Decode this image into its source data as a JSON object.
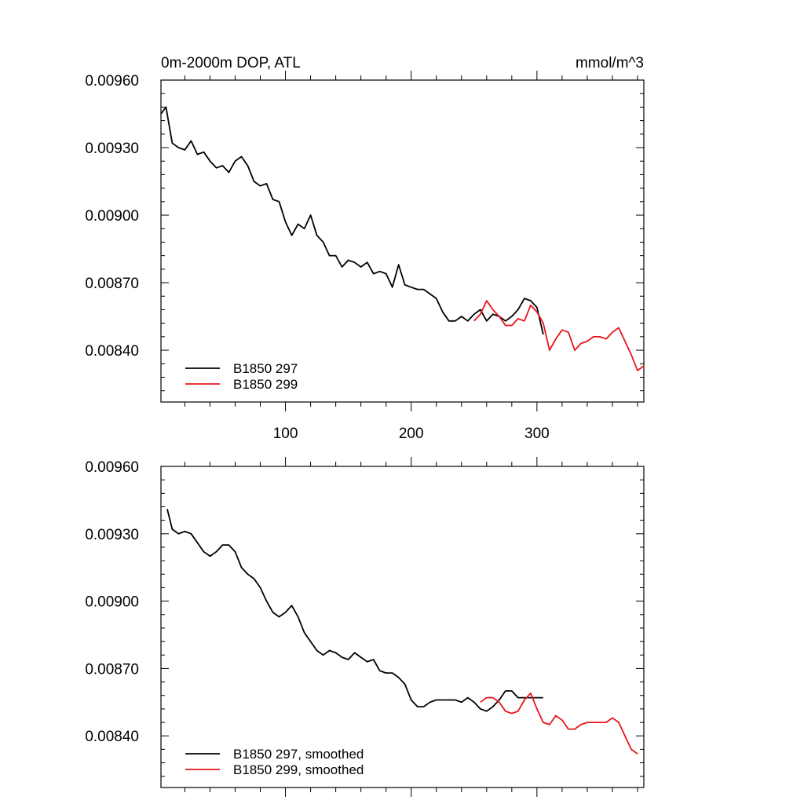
{
  "chart_data": [
    {
      "type": "line",
      "title_left": "0m-2000m DOP, ATL",
      "title_right": "mmol/m^3",
      "xlim": [
        1,
        385
      ],
      "ylim": [
        0.00817,
        0.0096
      ],
      "x_ticks": [
        100,
        200,
        300
      ],
      "x_tick_labels": [
        "100",
        "200",
        "300"
      ],
      "x_tick_labels_shown": true,
      "y_ticks": [
        0.0096,
        0.0093,
        0.009,
        0.0087,
        0.0084
      ],
      "y_tick_labels": [
        "0.00960",
        "0.00930",
        "0.00900",
        "0.00870",
        "0.00840"
      ],
      "legend_position": "bottom-left",
      "series": [
        {
          "name": "B1850 297",
          "color": "#000000",
          "x": [
            1,
            5,
            10,
            15,
            20,
            25,
            30,
            35,
            40,
            45,
            50,
            55,
            60,
            65,
            70,
            75,
            80,
            85,
            90,
            95,
            100,
            105,
            110,
            115,
            120,
            125,
            130,
            135,
            140,
            145,
            150,
            155,
            160,
            165,
            170,
            175,
            180,
            185,
            190,
            195,
            200,
            205,
            210,
            215,
            220,
            225,
            230,
            235,
            240,
            245,
            250,
            255,
            260,
            265,
            270,
            275,
            280,
            285,
            290,
            295,
            300,
            305
          ],
          "y": [
            0.00945,
            0.00948,
            0.00932,
            0.0093,
            0.00929,
            0.00933,
            0.00927,
            0.00928,
            0.00924,
            0.00921,
            0.00922,
            0.00919,
            0.00924,
            0.00926,
            0.00922,
            0.00915,
            0.00913,
            0.00914,
            0.00907,
            0.00906,
            0.00897,
            0.00891,
            0.00896,
            0.00894,
            0.009,
            0.00891,
            0.00888,
            0.00882,
            0.00882,
            0.00877,
            0.0088,
            0.00879,
            0.00877,
            0.00879,
            0.00874,
            0.00875,
            0.00874,
            0.00868,
            0.00878,
            0.00869,
            0.00868,
            0.00867,
            0.00867,
            0.00865,
            0.00863,
            0.00857,
            0.00853,
            0.00853,
            0.00855,
            0.00853,
            0.00856,
            0.00858,
            0.00853,
            0.00856,
            0.00855,
            0.00853,
            0.00855,
            0.00858,
            0.00863,
            0.00862,
            0.00859,
            0.00847
          ]
        },
        {
          "name": "B1850 299",
          "color": "#e8141c",
          "x": [
            250,
            255,
            260,
            265,
            270,
            275,
            280,
            285,
            290,
            295,
            300,
            305,
            310,
            315,
            320,
            325,
            330,
            335,
            340,
            345,
            350,
            355,
            360,
            365,
            370,
            375,
            380,
            385
          ],
          "y": [
            0.00853,
            0.00856,
            0.00862,
            0.00858,
            0.00855,
            0.00851,
            0.00851,
            0.00854,
            0.00853,
            0.0086,
            0.00857,
            0.00852,
            0.0084,
            0.00845,
            0.00849,
            0.00848,
            0.0084,
            0.00843,
            0.00844,
            0.00846,
            0.00846,
            0.00845,
            0.00848,
            0.0085,
            0.00844,
            0.00838,
            0.00831,
            0.00833
          ]
        }
      ]
    },
    {
      "type": "line",
      "xlim": [
        1,
        385
      ],
      "ylim": [
        0.00817,
        0.0096
      ],
      "x_ticks": [
        100,
        200,
        300
      ],
      "x_tick_labels_shown": false,
      "y_ticks": [
        0.0096,
        0.0093,
        0.009,
        0.0087,
        0.0084
      ],
      "y_tick_labels": [
        "0.00960",
        "0.00930",
        "0.00900",
        "0.00870",
        "0.00840"
      ],
      "legend_position": "bottom-left",
      "series": [
        {
          "name": "B1850 297, smoothed",
          "color": "#000000",
          "x": [
            6,
            10,
            15,
            20,
            25,
            30,
            35,
            40,
            45,
            50,
            55,
            60,
            65,
            70,
            75,
            80,
            85,
            90,
            95,
            100,
            105,
            110,
            115,
            120,
            125,
            130,
            135,
            140,
            145,
            150,
            155,
            160,
            165,
            170,
            175,
            180,
            185,
            190,
            195,
            200,
            205,
            210,
            215,
            220,
            225,
            230,
            235,
            240,
            245,
            250,
            255,
            260,
            265,
            270,
            275,
            280,
            285,
            290,
            295,
            300,
            305
          ],
          "y": [
            0.00941,
            0.00932,
            0.0093,
            0.00931,
            0.0093,
            0.00926,
            0.00922,
            0.0092,
            0.00922,
            0.00925,
            0.00925,
            0.00922,
            0.00915,
            0.00912,
            0.0091,
            0.00906,
            0.009,
            0.00895,
            0.00893,
            0.00895,
            0.00898,
            0.00893,
            0.00886,
            0.00882,
            0.00878,
            0.00876,
            0.00878,
            0.00877,
            0.00875,
            0.00874,
            0.00877,
            0.00875,
            0.00873,
            0.00874,
            0.00869,
            0.00868,
            0.00868,
            0.00866,
            0.00863,
            0.00856,
            0.00853,
            0.00853,
            0.00855,
            0.00856,
            0.00856,
            0.00856,
            0.00856,
            0.00855,
            0.00857,
            0.00855,
            0.00852,
            0.00851,
            0.00853,
            0.00856,
            0.0086,
            0.0086,
            0.00857,
            0.00857,
            0.00857,
            0.00857,
            0.00857
          ]
        },
        {
          "name": "B1850 299, smoothed",
          "color": "#e8141c",
          "x": [
            255,
            260,
            265,
            270,
            275,
            280,
            285,
            290,
            295,
            300,
            305,
            310,
            315,
            320,
            325,
            330,
            335,
            340,
            345,
            350,
            355,
            360,
            365,
            370,
            375,
            380
          ],
          "y": [
            0.00855,
            0.00857,
            0.00857,
            0.00855,
            0.00851,
            0.0085,
            0.00851,
            0.00856,
            0.00859,
            0.00852,
            0.00846,
            0.00845,
            0.00849,
            0.00847,
            0.00843,
            0.00843,
            0.00845,
            0.00846,
            0.00846,
            0.00846,
            0.00846,
            0.00848,
            0.00846,
            0.0084,
            0.00834,
            0.00832
          ]
        }
      ]
    }
  ]
}
